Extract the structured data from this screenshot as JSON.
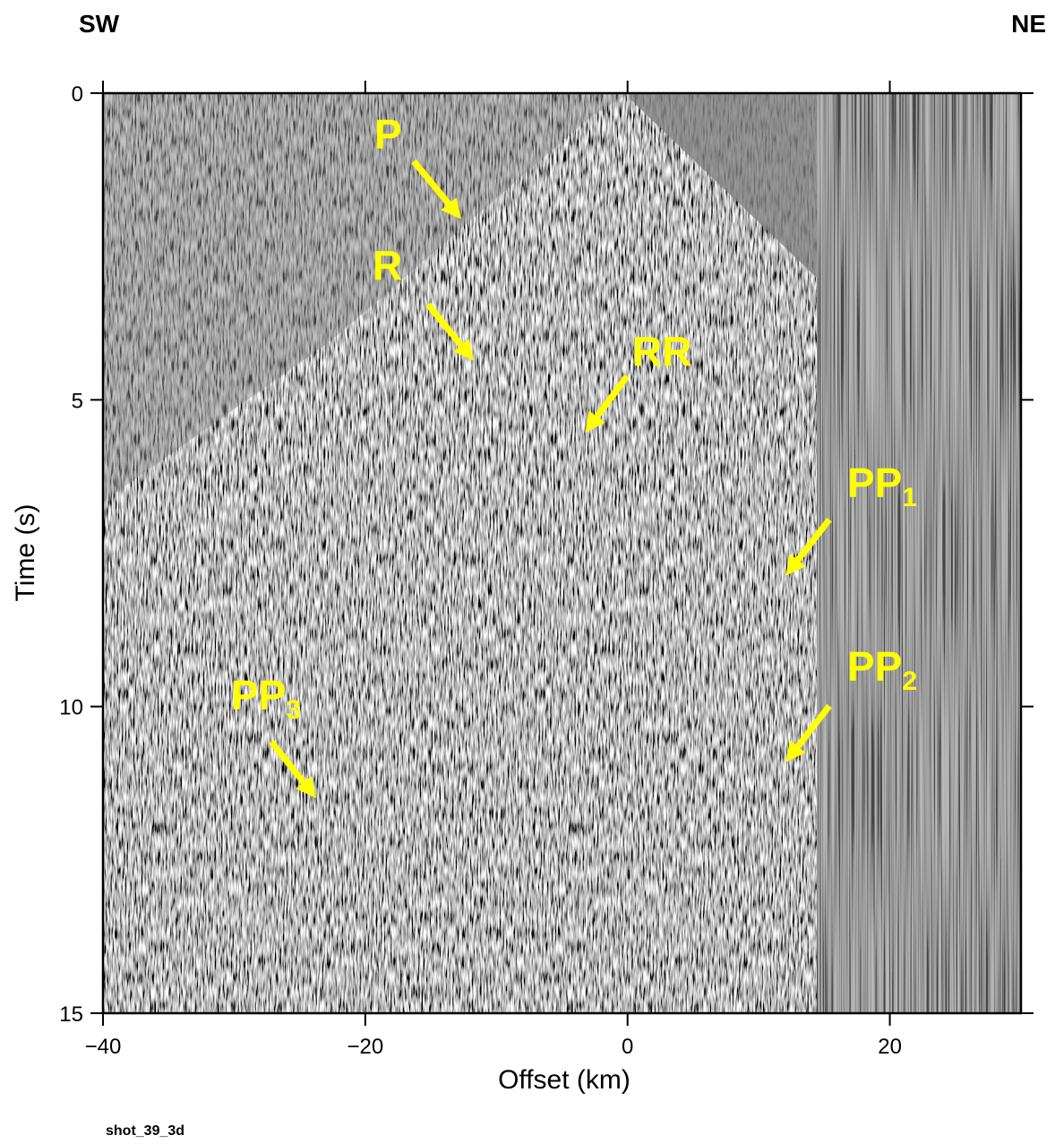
{
  "chart_data": {
    "type": "seismic-section",
    "left_label": "SW",
    "right_label": "NE",
    "xlabel": "Offset (km)",
    "ylabel": "Time (s)",
    "footer": "shot_39_3d",
    "xlim": [
      -40,
      30
    ],
    "ylim": [
      0,
      15
    ],
    "y_inverted": true,
    "xticks": [
      {
        "value": -40,
        "label": "−40"
      },
      {
        "value": -20,
        "label": "−20"
      },
      0,
      20
    ],
    "yticks": [
      0,
      5,
      10,
      15
    ],
    "annotation_color": "#ffff00",
    "annotations": [
      {
        "text": "P"
      },
      {
        "text": "R"
      },
      {
        "text": "RR"
      },
      {
        "text": "PP",
        "sub": "1"
      },
      {
        "text": "PP",
        "sub": "2"
      },
      {
        "text": "PP",
        "sub": "3"
      }
    ]
  }
}
